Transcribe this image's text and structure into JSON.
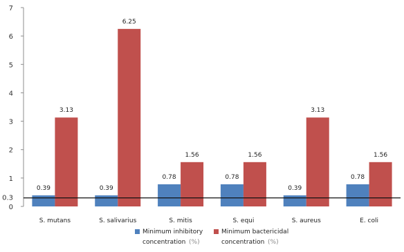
{
  "chart_data": {
    "type": "bar",
    "categories": [
      "S. mutans",
      "S. salivarius",
      "S. mitis",
      "S. equi",
      "S. aureus",
      "E. coli"
    ],
    "series": [
      {
        "name": "Minimum inhibitory concentration (%)",
        "legend_line1": "Minimum inhibitory",
        "legend_line2": "concentration",
        "legend_unit": "(%)",
        "color": "#4f81bd",
        "values": [
          0.39,
          0.39,
          0.78,
          0.78,
          0.39,
          0.78
        ],
        "labels": [
          "0.39",
          "0.39",
          "0.78",
          "0.78",
          "0.39",
          "0.78"
        ]
      },
      {
        "name": "Minimum bactericidal concentration (%)",
        "legend_line1": "Minimum bactericidal",
        "legend_line2": "concentration",
        "legend_unit": "(%)",
        "color": "#c0504d",
        "values": [
          3.13,
          6.25,
          1.56,
          1.56,
          3.13,
          1.56
        ],
        "labels": [
          "3.13",
          "6.25",
          "1.56",
          "1.56",
          "3.13",
          "1.56"
        ]
      }
    ],
    "ylim": [
      0,
      7
    ],
    "yticks": [
      0,
      1,
      2,
      3,
      4,
      5,
      6,
      7
    ],
    "ytick_labels": [
      "0",
      "1",
      "2",
      "3",
      "4",
      "5",
      "6",
      "7"
    ],
    "reference_line": {
      "value": 0.3,
      "label": "0.3"
    },
    "legend_position": "bottom",
    "grid": false
  }
}
